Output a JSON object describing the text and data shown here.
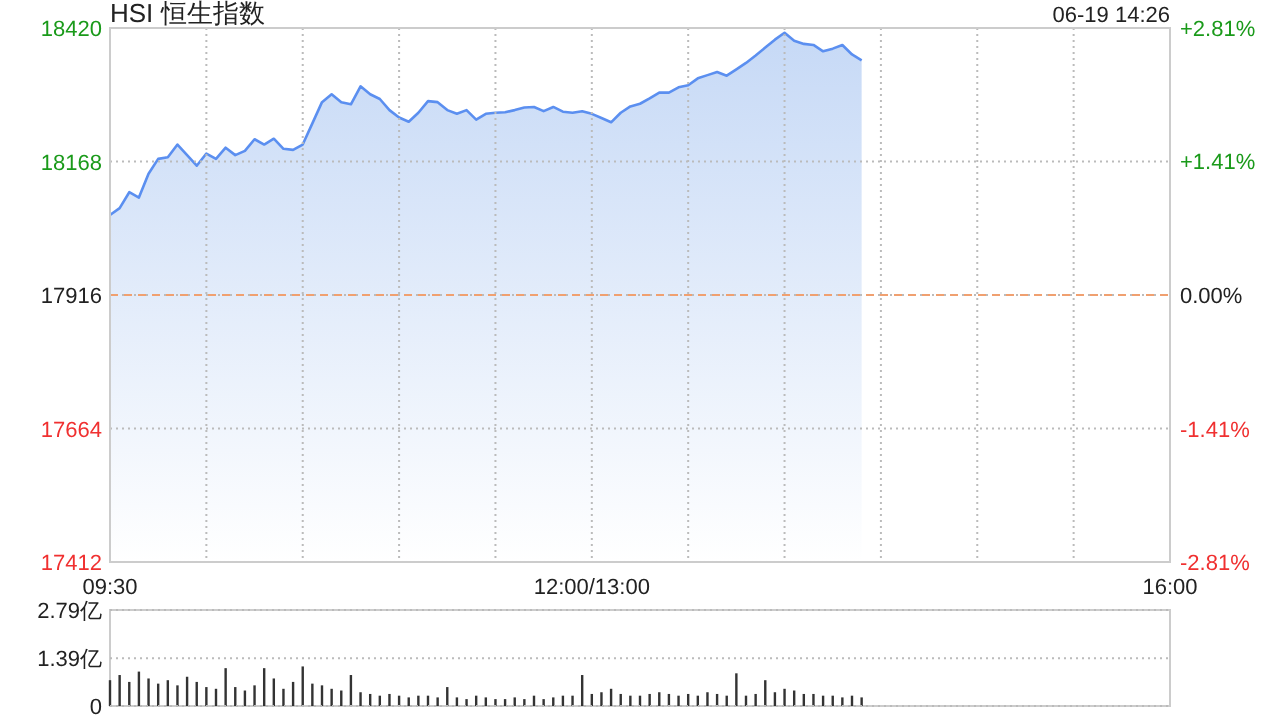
{
  "chart_data": [
    {
      "type": "area",
      "title": "HSI 恒生指数",
      "annotations": [
        "06-19 14:26"
      ],
      "categories": [
        "09:30",
        null,
        null,
        null,
        null,
        null,
        null,
        null,
        null,
        null,
        null,
        null,
        null,
        null,
        null,
        null,
        null,
        null,
        null,
        null,
        null,
        null,
        null,
        null,
        null,
        null,
        null,
        null,
        null,
        null,
        null,
        null,
        null,
        null,
        null,
        null,
        null,
        null,
        null,
        null,
        null,
        null,
        null,
        null,
        null,
        null,
        null,
        null,
        null,
        null,
        "12:00/13:00",
        null,
        null,
        null,
        null,
        null,
        null,
        null,
        null,
        null,
        null,
        null,
        null,
        null,
        null,
        null,
        null,
        null,
        null,
        null,
        null,
        null,
        null,
        null,
        null,
        null,
        null,
        null,
        null,
        null,
        null,
        null,
        null,
        null,
        null,
        null,
        null,
        null,
        null,
        null,
        null,
        null,
        null,
        null,
        null,
        null,
        null,
        null,
        null,
        null,
        null,
        null,
        null,
        null,
        null,
        null,
        null,
        null,
        null,
        null,
        "16:00"
      ],
      "ylim": [
        17412,
        18420
      ],
      "yticks": [
        17412,
        17664,
        17916,
        18168,
        18420
      ],
      "y2lim": [
        -2.81,
        2.81
      ],
      "y2ticks": [
        {
          "value": -2.81,
          "label": "-2.81%"
        },
        {
          "value": -1.41,
          "label": "-1.41%"
        },
        {
          "value": 0,
          "label": "0.00%"
        },
        {
          "value": 1.41,
          "label": "+1.41%"
        },
        {
          "value": 2.81,
          "label": "+2.81%"
        }
      ],
      "ref_lines": [
        {
          "axis": "y",
          "value": 17916,
          "color": "#f0a070",
          "line_style": "dashed"
        }
      ],
      "grid": true,
      "series": [
        {
          "color": "#5b8ff0",
          "values": [
            18067,
            18080,
            18110,
            18100,
            18145,
            18173,
            18176,
            18200,
            18180,
            18160,
            18183,
            18173,
            18194,
            18180,
            18188,
            18210,
            18200,
            18211,
            18192,
            18190,
            18200,
            18240,
            18280,
            18295,
            18280,
            18276,
            18310,
            18295,
            18286,
            18265,
            18251,
            18243,
            18260,
            18282,
            18280,
            18265,
            18258,
            18265,
            18247,
            18258,
            18260,
            18261,
            18265,
            18270,
            18271,
            18263,
            18271,
            18262,
            18260,
            18263,
            18258,
            18250,
            18242,
            18260,
            18272,
            18277,
            18287,
            18298,
            18298,
            18308,
            18312,
            18325,
            18331,
            18337,
            18330,
            18342,
            18354,
            18368,
            18383,
            18398,
            18411,
            18396,
            18390,
            18388,
            18376,
            18381,
            18388,
            18370,
            18359,
            null,
            null,
            null,
            null,
            null,
            null,
            null,
            null,
            null,
            null,
            null,
            null,
            null,
            null,
            null,
            null,
            null,
            null,
            null,
            null,
            null,
            null,
            null,
            null,
            null,
            null,
            null,
            null,
            null,
            null,
            null,
            null
          ]
        }
      ]
    },
    {
      "type": "bar",
      "categories": [
        null,
        null,
        null,
        null,
        null,
        null,
        null,
        null,
        null,
        null,
        null,
        null,
        null,
        null,
        null,
        null,
        null,
        null,
        null,
        null,
        null,
        null,
        null,
        null,
        null,
        null,
        null,
        null,
        null,
        null,
        null,
        null,
        null,
        null,
        null,
        null,
        null,
        null,
        null,
        null,
        null,
        null,
        null,
        null,
        null,
        null,
        null,
        null,
        null,
        null,
        null,
        null,
        null,
        null,
        null,
        null,
        null,
        null,
        null,
        null,
        null,
        null,
        null,
        null,
        null,
        null,
        null,
        null,
        null,
        null,
        null,
        null,
        null,
        null,
        null,
        null,
        null,
        null,
        null,
        null,
        null,
        null,
        null,
        null,
        null,
        null,
        null,
        null,
        null,
        null,
        null,
        null,
        null,
        null,
        null,
        null,
        null,
        null,
        null,
        null,
        null,
        null,
        null,
        null,
        null,
        null,
        null,
        null,
        null,
        null,
        null
      ],
      "ylim": [
        0,
        2.79
      ],
      "yticks": [
        0,
        {
          "value": 1.39,
          "label": "1.39亿"
        },
        {
          "value": 2.79,
          "label": "2.79亿"
        }
      ],
      "grid": "y",
      "tick_labels": "y",
      "series": [
        {
          "color": "#333333",
          "values": [
            0.75,
            0.9,
            0.7,
            1.0,
            0.8,
            0.65,
            0.75,
            0.6,
            0.85,
            0.7,
            0.55,
            0.5,
            1.1,
            0.55,
            0.45,
            0.6,
            1.1,
            0.8,
            0.5,
            0.7,
            1.15,
            0.65,
            0.6,
            0.5,
            0.45,
            0.9,
            0.4,
            0.35,
            0.3,
            0.35,
            0.3,
            0.25,
            0.3,
            0.3,
            0.25,
            0.55,
            0.25,
            0.2,
            0.3,
            0.25,
            0.2,
            0.2,
            0.25,
            0.2,
            0.3,
            0.2,
            0.25,
            0.3,
            0.3,
            0.9,
            0.35,
            0.4,
            0.5,
            0.35,
            0.3,
            0.3,
            0.35,
            0.4,
            0.35,
            0.3,
            0.35,
            0.3,
            0.4,
            0.35,
            0.3,
            0.95,
            0.3,
            0.35,
            0.75,
            0.4,
            0.5,
            0.45,
            0.35,
            0.35,
            0.3,
            0.3,
            0.25,
            0.3,
            0.25,
            null,
            null,
            null,
            null,
            null,
            null,
            null,
            null,
            null,
            null,
            null,
            null,
            null,
            null,
            null,
            null,
            null,
            null,
            null,
            null,
            null,
            null,
            null,
            null,
            null,
            null,
            null,
            null,
            null,
            null,
            null,
            null
          ]
        }
      ]
    }
  ]
}
